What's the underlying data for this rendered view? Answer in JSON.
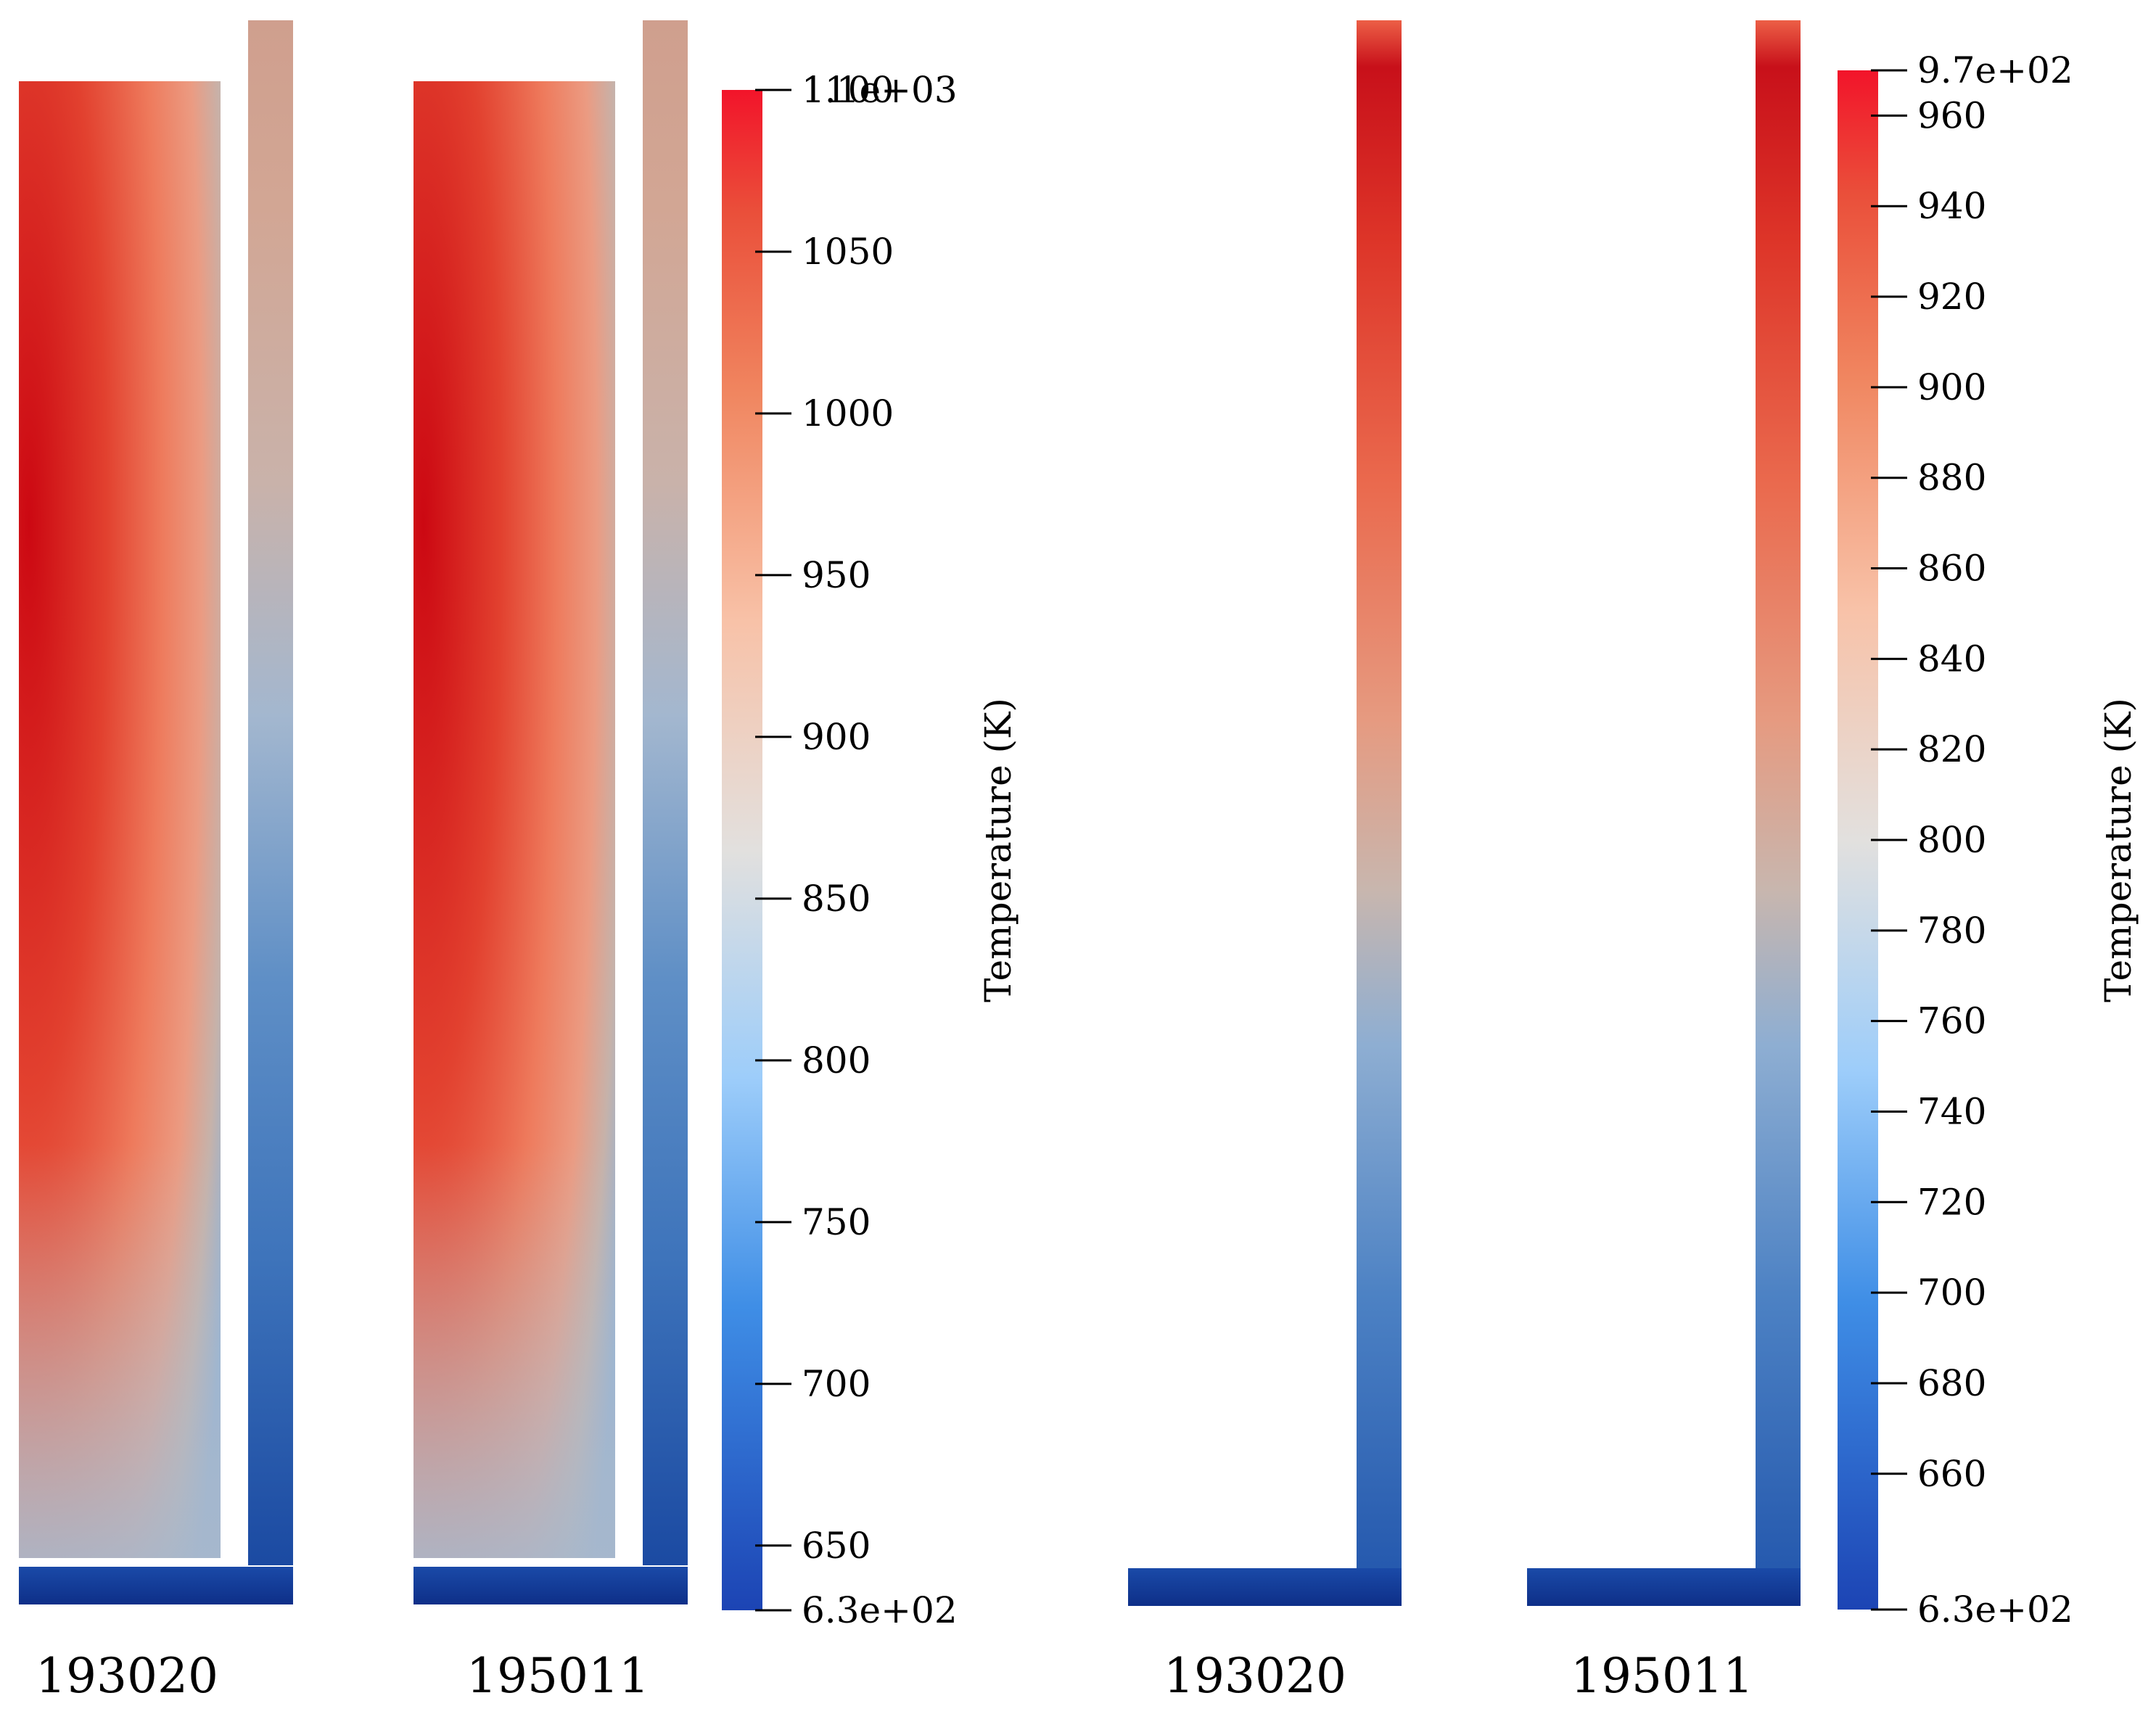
{
  "figure": {
    "left_panel": {
      "case_labels": [
        "193020",
        "195011"
      ]
    },
    "right_panel": {
      "case_labels": [
        "193020",
        "195011"
      ]
    }
  },
  "colorbars": [
    {
      "title": "Temperature (K)",
      "min": 630,
      "max": 1100,
      "min_label": "6.3e+02",
      "max_label": "1.1e+03",
      "ticks": [
        650,
        700,
        750,
        800,
        850,
        900,
        950,
        1000,
        1050,
        1100
      ],
      "tick_labels": [
        "650",
        "700",
        "750",
        "800",
        "850",
        "900",
        "950",
        "1000",
        "1050",
        "1100"
      ]
    },
    {
      "title": "Temperature (K)",
      "min": 630,
      "max": 970,
      "min_label": "6.3e+02",
      "max_label": "9.7e+02",
      "ticks": [
        660,
        680,
        700,
        720,
        740,
        760,
        780,
        800,
        820,
        840,
        860,
        880,
        900,
        920,
        940,
        960
      ],
      "tick_labels": [
        "660",
        "680",
        "700",
        "720",
        "740",
        "760",
        "780",
        "800",
        "820",
        "840",
        "860",
        "880",
        "900",
        "920",
        "940",
        "960"
      ]
    }
  ],
  "colors": {
    "hot": "#d7000f",
    "warm": "#f0775a",
    "neutral": "#dddcdc",
    "cool": "#64b4f5",
    "cold": "#163c9c"
  }
}
